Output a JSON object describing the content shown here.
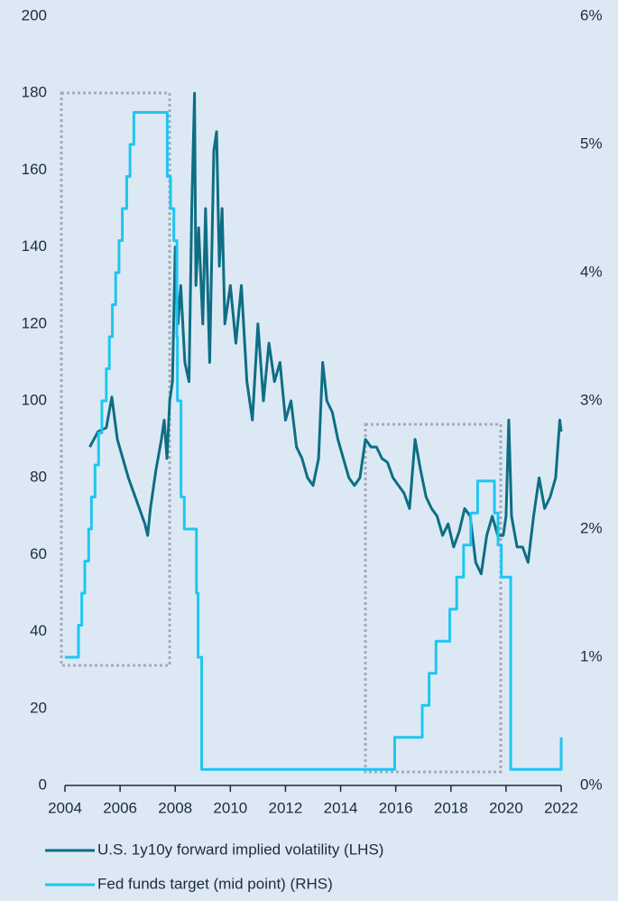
{
  "chart_data": {
    "type": "line",
    "xlim": [
      2004,
      2022
    ],
    "xticks": [
      2004,
      2006,
      2008,
      2010,
      2012,
      2014,
      2016,
      2018,
      2020,
      2022
    ],
    "ylim": [
      0,
      200
    ],
    "yticks": [
      0,
      20,
      40,
      60,
      80,
      100,
      120,
      140,
      160,
      180,
      200
    ],
    "y2lim": [
      0,
      6
    ],
    "y2ticks": [
      {
        "value": 0,
        "label": "0%"
      },
      {
        "value": 1,
        "label": "1%"
      },
      {
        "value": 2,
        "label": "2%"
      },
      {
        "value": 3,
        "label": "3%"
      },
      {
        "value": 4,
        "label": "4%"
      },
      {
        "value": 5,
        "label": "5%"
      },
      {
        "value": 6,
        "label": "6%"
      }
    ],
    "legend": "bottom",
    "series": [
      {
        "name": "U.S. 1y10y forward implied volatility (LHS)",
        "color": "#0e6e84",
        "axis": "y",
        "x": [
          2004.9,
          2005.2,
          2005.5,
          2005.7,
          2005.9,
          2006.1,
          2006.3,
          2006.5,
          2006.7,
          2006.9,
          2007.0,
          2007.1,
          2007.3,
          2007.5,
          2007.6,
          2007.7,
          2007.8,
          2007.9,
          2008.0,
          2008.1,
          2008.2,
          2008.35,
          2008.5,
          2008.6,
          2008.7,
          2008.75,
          2008.85,
          2009.0,
          2009.1,
          2009.25,
          2009.4,
          2009.5,
          2009.6,
          2009.7,
          2009.8,
          2010.0,
          2010.2,
          2010.4,
          2010.6,
          2010.8,
          2011.0,
          2011.2,
          2011.4,
          2011.6,
          2011.8,
          2012.0,
          2012.2,
          2012.4,
          2012.6,
          2012.8,
          2013.0,
          2013.2,
          2013.35,
          2013.5,
          2013.7,
          2013.9,
          2014.1,
          2014.3,
          2014.5,
          2014.7,
          2014.9,
          2015.1,
          2015.3,
          2015.5,
          2015.7,
          2015.9,
          2016.1,
          2016.3,
          2016.5,
          2016.7,
          2016.9,
          2017.1,
          2017.3,
          2017.5,
          2017.7,
          2017.9,
          2018.1,
          2018.3,
          2018.5,
          2018.7,
          2018.9,
          2019.1,
          2019.3,
          2019.5,
          2019.7,
          2019.9,
          2020.0,
          2020.1,
          2020.2,
          2020.4,
          2020.6,
          2020.8,
          2021.0,
          2021.2,
          2021.4,
          2021.6,
          2021.8,
          2021.95,
          2022.0
        ],
        "values": [
          88,
          92,
          93,
          101,
          90,
          85,
          80,
          76,
          72,
          68,
          65,
          72,
          82,
          90,
          95,
          85,
          100,
          105,
          140,
          120,
          130,
          110,
          105,
          150,
          180,
          130,
          145,
          120,
          150,
          110,
          165,
          170,
          135,
          150,
          120,
          130,
          115,
          130,
          105,
          95,
          120,
          100,
          115,
          105,
          110,
          95,
          100,
          88,
          85,
          80,
          78,
          85,
          110,
          100,
          97,
          90,
          85,
          80,
          78,
          80,
          90,
          88,
          88,
          85,
          84,
          80,
          78,
          76,
          72,
          90,
          82,
          75,
          72,
          70,
          65,
          68,
          62,
          66,
          72,
          70,
          58,
          55,
          65,
          70,
          65,
          65,
          70,
          95,
          70,
          62,
          62,
          58,
          70,
          80,
          72,
          75,
          80,
          95,
          92
        ]
      },
      {
        "name": "Fed funds target (mid point) (RHS)",
        "color": "#1ec6ef",
        "axis": "y2",
        "drawstyle": "steps-post",
        "x": [
          2004.0,
          2004.49,
          2004.61,
          2004.72,
          2004.86,
          2004.96,
          2005.09,
          2005.22,
          2005.34,
          2005.5,
          2005.61,
          2005.72,
          2005.84,
          2005.96,
          2006.08,
          2006.24,
          2006.36,
          2006.5,
          2007.71,
          2007.83,
          2007.95,
          2008.06,
          2008.08,
          2008.21,
          2008.33,
          2008.77,
          2008.83,
          2008.96,
          2015.96,
          2016.96,
          2017.21,
          2017.46,
          2017.96,
          2018.21,
          2018.46,
          2018.72,
          2018.97,
          2019.58,
          2019.71,
          2019.83,
          2020.17,
          2022.0
        ],
        "values": [
          1.0,
          1.25,
          1.5,
          1.75,
          2.0,
          2.25,
          2.5,
          2.75,
          3.0,
          3.25,
          3.5,
          3.75,
          4.0,
          4.25,
          4.5,
          4.75,
          5.0,
          5.25,
          4.75,
          4.5,
          4.25,
          3.5,
          3.0,
          2.25,
          2.0,
          1.5,
          1.0,
          0.125,
          0.375,
          0.625,
          0.875,
          1.125,
          1.375,
          1.625,
          1.875,
          2.125,
          2.375,
          2.125,
          1.875,
          1.625,
          0.125,
          0.375
        ]
      }
    ]
  }
}
